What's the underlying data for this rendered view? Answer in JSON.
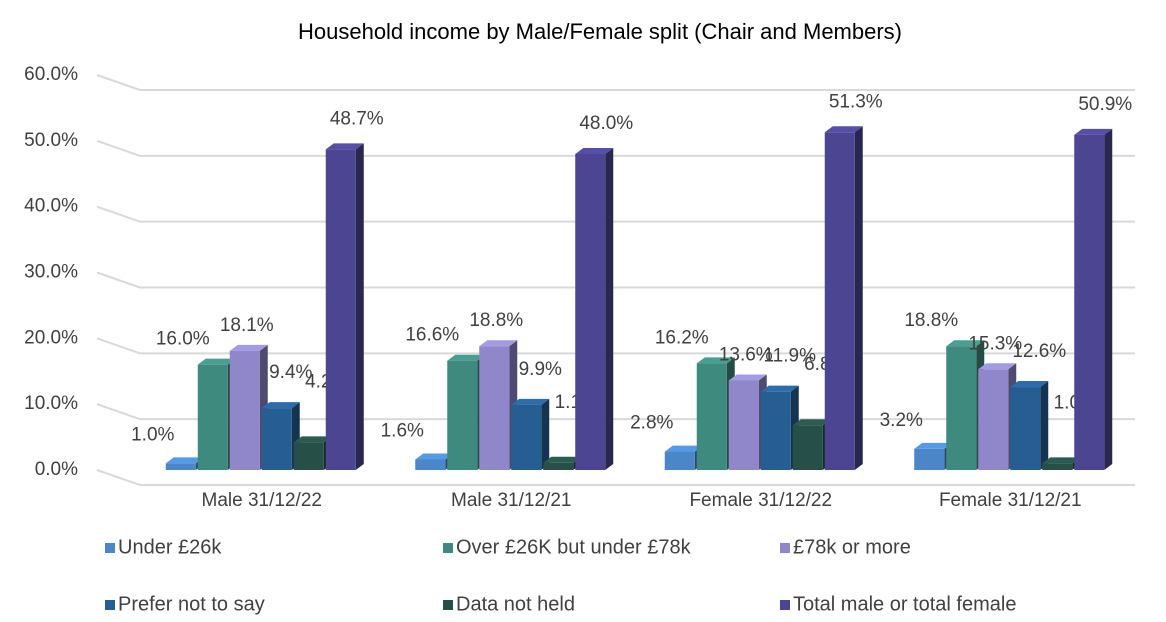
{
  "chart_data": {
    "type": "bar3d",
    "title": "Household income by Male/Female split (Chair and Members)",
    "categories": [
      "Male 31/12/22",
      "Male 31/12/21",
      "Female 31/12/22",
      "Female 31/12/21"
    ],
    "series": [
      {
        "name": "Under £26k",
        "color": "#4a86c8",
        "values": [
          1.0,
          1.6,
          2.8,
          3.2
        ],
        "value_labels": [
          "1.0%",
          "1.6%",
          "2.8%",
          "3.2%"
        ]
      },
      {
        "name": "Over £26K but under £78k",
        "color": "#3f8a7e",
        "values": [
          16.0,
          16.6,
          16.2,
          18.8
        ],
        "value_labels": [
          "16.0%",
          "16.6%",
          "16.2%",
          "18.8%"
        ]
      },
      {
        "name": "£78k or more",
        "color": "#8f87c9",
        "values": [
          18.1,
          18.8,
          13.6,
          15.3
        ],
        "value_labels": [
          "18.1%",
          "18.8%",
          "13.6%",
          "15.3%"
        ]
      },
      {
        "name": "Prefer not to say",
        "color": "#265e94",
        "values": [
          9.4,
          9.9,
          11.9,
          12.6
        ],
        "value_labels": [
          "9.4%",
          "9.9%",
          "11.9%",
          "12.6%"
        ]
      },
      {
        "name": "Data not held",
        "color": "#264f47",
        "values": [
          4.2,
          1.1,
          6.8,
          1.0
        ],
        "value_labels": [
          "4.2%",
          "1.1%",
          "6.8%",
          "1.0%"
        ]
      },
      {
        "name": "Total male or total female",
        "color": "#4b4592",
        "values": [
          48.7,
          48.0,
          51.3,
          50.9
        ],
        "value_labels": [
          "48.7%",
          "48.0%",
          "51.3%",
          "50.9%"
        ]
      }
    ],
    "ylim": [
      0,
      60
    ],
    "yticks": [
      {
        "value": 0,
        "label": "0.0%"
      },
      {
        "value": 10,
        "label": "10.0%"
      },
      {
        "value": 20,
        "label": "20.0%"
      },
      {
        "value": 30,
        "label": "30.0%"
      },
      {
        "value": 40,
        "label": "40.0%"
      },
      {
        "value": 50,
        "label": "50.0%"
      },
      {
        "value": 60,
        "label": "60.0%"
      }
    ],
    "grid": true,
    "legend": "bottom"
  }
}
